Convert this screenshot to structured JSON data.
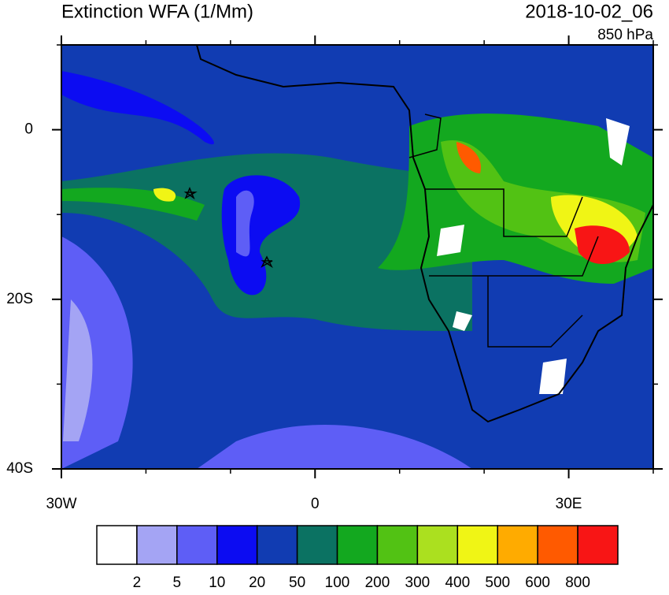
{
  "title": "Extinction WFA (1/Mm)",
  "valid_time": "2018-10-02_06",
  "level": "850 hPa",
  "map": {
    "xlim": [
      -30,
      40
    ],
    "ylim": [
      -40,
      10
    ],
    "xticks": [
      {
        "value": -30,
        "label": "30W"
      },
      0,
      {
        "value": 30,
        "label": "30E"
      }
    ],
    "yticks": [
      0,
      {
        "value": -20,
        "label": "20S"
      },
      {
        "value": -40,
        "label": "40S"
      }
    ],
    "xminor": [
      -20,
      -10,
      10,
      20,
      40
    ],
    "yminor": [
      10,
      -10,
      -30
    ]
  },
  "colorbar": {
    "colors": [
      "#ffffff",
      "#a4a4f4",
      "#5e5ef6",
      "#0c0cf2",
      "#113cb2",
      "#0b7262",
      "#13a81f",
      "#52c214",
      "#abe01f",
      "#f0f515",
      "#ffab00",
      "#ff5a00",
      "#f81515"
    ],
    "labels": [
      "2",
      "5",
      "10",
      "20",
      "50",
      "100",
      "200",
      "300",
      "400",
      "500",
      "600",
      "800"
    ]
  }
}
